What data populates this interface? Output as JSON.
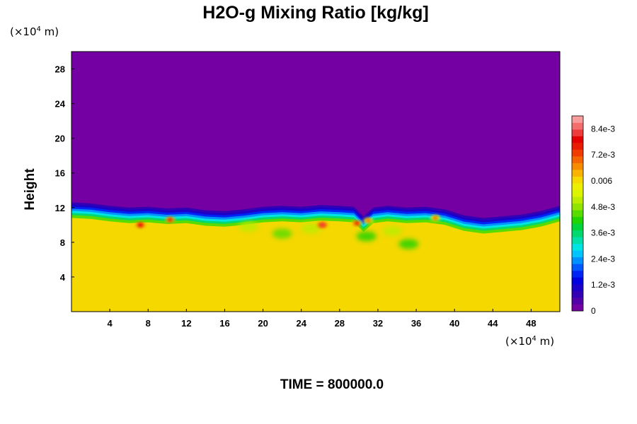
{
  "chart_data": {
    "type": "heatmap",
    "title": "H2O-g Mixing Ratio [kg/kg]",
    "ylabel": "Height",
    "xlabel": "",
    "x_unit": {
      "prefix": "(×10",
      "exp": "4",
      "suffix": " m)"
    },
    "y_unit": {
      "prefix": "(×10",
      "exp": "4",
      "suffix": " m)"
    },
    "xlim": [
      0,
      51
    ],
    "ylim": [
      0,
      30
    ],
    "x_ticks": [
      {
        "v": 4,
        "label": "4"
      },
      {
        "v": 8,
        "label": "8"
      },
      {
        "v": 12,
        "label": "12"
      },
      {
        "v": 16,
        "label": "16"
      },
      {
        "v": 20,
        "label": "20"
      },
      {
        "v": 24,
        "label": "24"
      },
      {
        "v": 28,
        "label": "28"
      },
      {
        "v": 32,
        "label": "32"
      },
      {
        "v": 36,
        "label": "36"
      },
      {
        "v": 40,
        "label": "40"
      },
      {
        "v": 44,
        "label": "44"
      },
      {
        "v": 48,
        "label": "48"
      }
    ],
    "y_ticks": [
      {
        "v": 4,
        "label": "4"
      },
      {
        "v": 8,
        "label": "8"
      },
      {
        "v": 12,
        "label": "12"
      },
      {
        "v": 16,
        "label": "16"
      },
      {
        "v": 20,
        "label": "20"
      },
      {
        "v": 24,
        "label": "24"
      },
      {
        "v": 28,
        "label": "28"
      }
    ],
    "colorbar": {
      "range": [
        0,
        0.009
      ],
      "ticks": [
        {
          "v": 0,
          "label": "0"
        },
        {
          "v": 0.0012,
          "label": "1.2e-3"
        },
        {
          "v": 0.0024,
          "label": "2.4e-3"
        },
        {
          "v": 0.0036,
          "label": "3.6e-3"
        },
        {
          "v": 0.0048,
          "label": "4.8e-3"
        },
        {
          "v": 0.006,
          "label": "0.006"
        },
        {
          "v": 0.0072,
          "label": "7.2e-3"
        },
        {
          "v": 0.0084,
          "label": "8.4e-3"
        }
      ],
      "colors": [
        "#7400a4",
        "#5200a8",
        "#3400b4",
        "#1a00c8",
        "#0000e0",
        "#0024f4",
        "#0058ff",
        "#0090ff",
        "#00c4ff",
        "#00e4e4",
        "#00e0a8",
        "#00d870",
        "#00d43c",
        "#20d400",
        "#58dc00",
        "#90e400",
        "#bcec00",
        "#dcf400",
        "#ecf000",
        "#f4d800",
        "#f8b400",
        "#f88c00",
        "#f46400",
        "#f03c00",
        "#e81c00",
        "#e40000",
        "#ec3c3c",
        "#f46e6e",
        "#f89c9c"
      ]
    },
    "background_value": 0,
    "moist_layer_value": 0.0062,
    "interface_height": [
      [
        0,
        12.6
      ],
      [
        2,
        12.5
      ],
      [
        4,
        12.2
      ],
      [
        6,
        12.0
      ],
      [
        8,
        12.1
      ],
      [
        10,
        11.9
      ],
      [
        12,
        12.0
      ],
      [
        14,
        11.7
      ],
      [
        16,
        11.6
      ],
      [
        18,
        11.8
      ],
      [
        20,
        12.1
      ],
      [
        22,
        12.2
      ],
      [
        24,
        12.1
      ],
      [
        26,
        12.3
      ],
      [
        28,
        12.2
      ],
      [
        29.5,
        12.1
      ],
      [
        30.5,
        11.0
      ],
      [
        31.5,
        12.0
      ],
      [
        33,
        12.2
      ],
      [
        35,
        12.0
      ],
      [
        37,
        12.1
      ],
      [
        39,
        11.8
      ],
      [
        41,
        11.1
      ],
      [
        43,
        10.8
      ],
      [
        45,
        11.0
      ],
      [
        47,
        11.2
      ],
      [
        49,
        11.6
      ],
      [
        51,
        12.2
      ]
    ],
    "anomalies": [
      {
        "x": 7.2,
        "y": 10.0,
        "value": 0.0078
      },
      {
        "x": 10.3,
        "y": 10.6,
        "value": 0.0075
      },
      {
        "x": 26.2,
        "y": 10.0,
        "value": 0.0082
      },
      {
        "x": 29.8,
        "y": 10.2,
        "value": 0.0075
      },
      {
        "x": 31.0,
        "y": 10.5,
        "value": 0.007
      },
      {
        "x": 38.0,
        "y": 10.8,
        "value": 0.007
      }
    ],
    "dry_patches": [
      {
        "x": 22.0,
        "y": 9.0,
        "value": 0.0044
      },
      {
        "x": 30.8,
        "y": 8.7,
        "value": 0.0042
      },
      {
        "x": 35.2,
        "y": 7.8,
        "value": 0.0042
      },
      {
        "x": 18.5,
        "y": 9.8,
        "value": 0.005
      },
      {
        "x": 25.0,
        "y": 9.6,
        "value": 0.0052
      },
      {
        "x": 33.5,
        "y": 9.3,
        "value": 0.005
      }
    ],
    "time_label": "TIME = 800000.0"
  }
}
